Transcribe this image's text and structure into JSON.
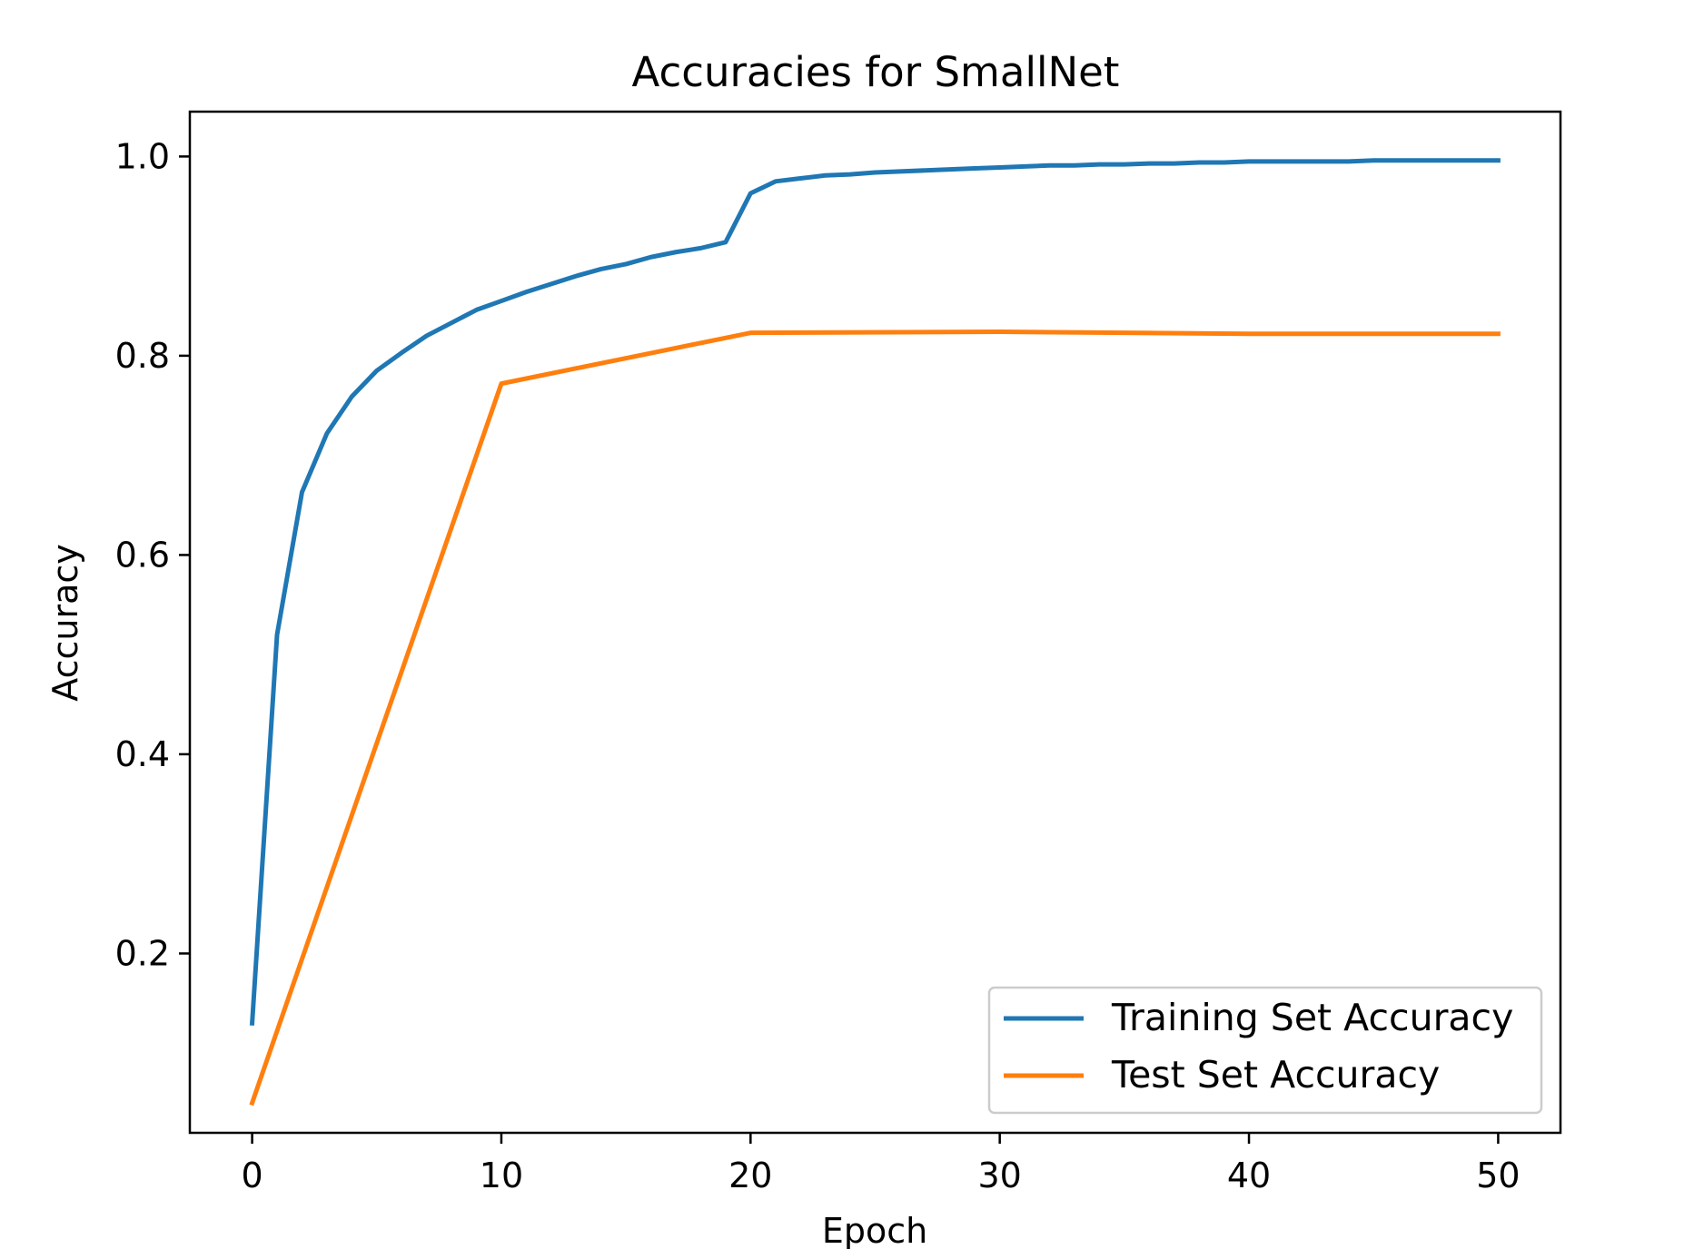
{
  "chart_data": {
    "type": "line",
    "title": "Accuracies for SmallNet",
    "xlabel": "Epoch",
    "ylabel": "Accuracy",
    "xlim": [
      -2.5,
      52.5
    ],
    "ylim": [
      0.02,
      1.045
    ],
    "x_ticks": [
      0,
      10,
      20,
      30,
      40,
      50
    ],
    "x_tick_labels": [
      "0",
      "10",
      "20",
      "30",
      "40",
      "50"
    ],
    "y_ticks": [
      0.2,
      0.4,
      0.6,
      0.8,
      1.0
    ],
    "y_tick_labels": [
      "0.2",
      "0.4",
      "0.6",
      "0.8",
      "1.0"
    ],
    "grid": false,
    "legend_position": "lower-right",
    "series": [
      {
        "name": "Training Set Accuracy",
        "color": "#1f77b4",
        "x": [
          0,
          1,
          2,
          3,
          4,
          5,
          6,
          7,
          8,
          9,
          10,
          11,
          12,
          13,
          14,
          15,
          16,
          17,
          18,
          19,
          20,
          21,
          22,
          23,
          24,
          25,
          26,
          27,
          28,
          29,
          30,
          31,
          32,
          33,
          34,
          35,
          36,
          37,
          38,
          39,
          40,
          41,
          42,
          43,
          44,
          45,
          46,
          47,
          48,
          49,
          50
        ],
        "y": [
          0.13,
          0.52,
          0.663,
          0.722,
          0.759,
          0.785,
          0.803,
          0.82,
          0.833,
          0.846,
          0.855,
          0.864,
          0.872,
          0.88,
          0.887,
          0.892,
          0.899,
          0.904,
          0.908,
          0.914,
          0.963,
          0.975,
          0.978,
          0.981,
          0.982,
          0.984,
          0.985,
          0.986,
          0.987,
          0.988,
          0.989,
          0.99,
          0.991,
          0.991,
          0.992,
          0.992,
          0.993,
          0.993,
          0.994,
          0.994,
          0.995,
          0.995,
          0.995,
          0.995,
          0.995,
          0.996,
          0.996,
          0.996,
          0.996,
          0.996,
          0.996
        ]
      },
      {
        "name": "Test Set Accuracy",
        "color": "#ff7f0e",
        "x": [
          0,
          10,
          20,
          30,
          40,
          50
        ],
        "y": [
          0.05,
          0.772,
          0.823,
          0.824,
          0.822,
          0.822
        ]
      }
    ]
  }
}
